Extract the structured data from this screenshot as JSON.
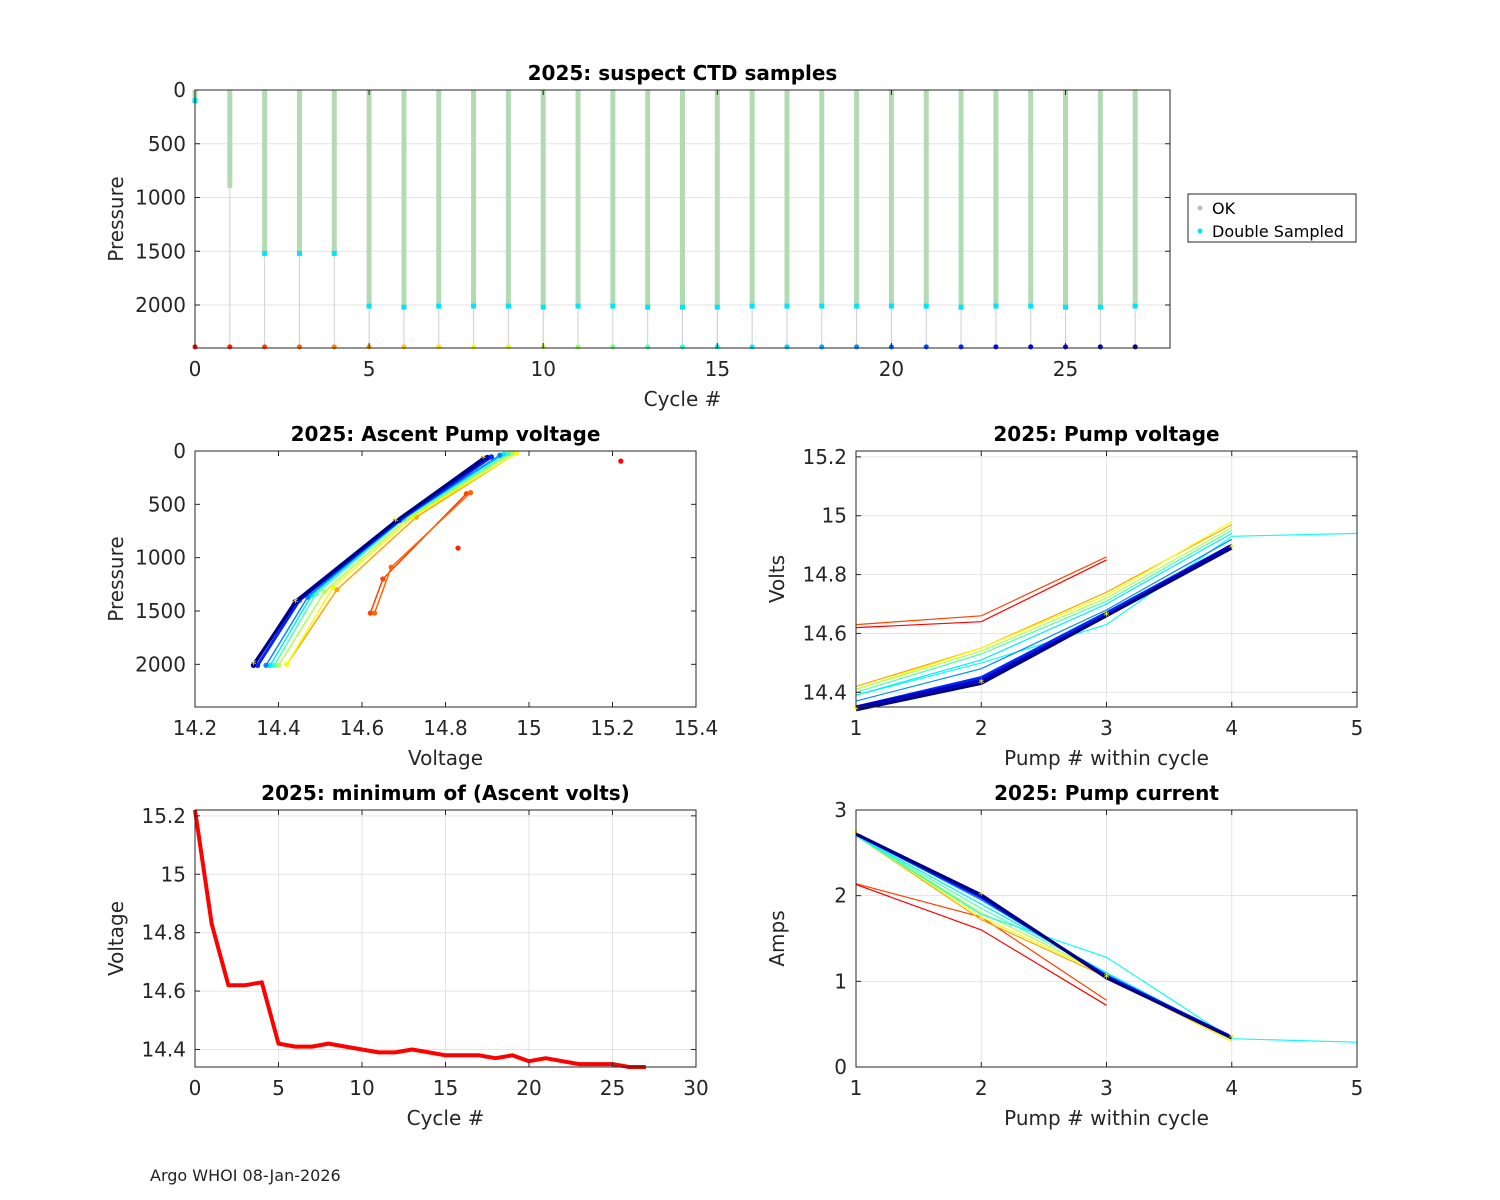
{
  "footer": "Argo WHOI 08-Jan-2026",
  "chart_data": [
    {
      "id": "suspect",
      "type": "scatter",
      "title": "2025: suspect CTD samples",
      "xlabel": "Cycle #",
      "ylabel": "Pressure",
      "xlim": [
        0,
        28
      ],
      "ylim": [
        0,
        2400
      ],
      "y_reversed": true,
      "xticks": [
        0,
        5,
        10,
        15,
        20,
        25
      ],
      "yticks": [
        0,
        500,
        1000,
        1500,
        2000
      ],
      "grid": true,
      "legend": [
        {
          "label": "OK",
          "color": "#c0c0c0"
        },
        {
          "label": "Double Sampled",
          "color": "#00e5ff"
        }
      ],
      "legend_position": "outside-right",
      "cycles": [
        0,
        1,
        2,
        3,
        4,
        5,
        6,
        7,
        8,
        9,
        10,
        11,
        12,
        13,
        14,
        15,
        16,
        17,
        18,
        19,
        20,
        21,
        22,
        23,
        24,
        25,
        26,
        27
      ],
      "profile_max_pressure": [
        100,
        910,
        1520,
        1520,
        1520,
        2010,
        2020,
        2010,
        2010,
        2010,
        2020,
        2010,
        2010,
        2020,
        2020,
        2020,
        2010,
        2010,
        2010,
        2010,
        2010,
        2010,
        2020,
        2010,
        2010,
        2020,
        2020,
        2010
      ],
      "double_sampled_pressure": [
        100,
        null,
        1520,
        1520,
        1520,
        2010,
        2020,
        2010,
        2010,
        2010,
        2020,
        2010,
        2010,
        2020,
        2020,
        2020,
        2010,
        2010,
        2010,
        2010,
        2010,
        2010,
        2020,
        2010,
        2010,
        2020,
        2020,
        2010
      ],
      "ok_color": "#b3dbb3",
      "bottom_marker_pressure": 2390
    },
    {
      "id": "ascent",
      "type": "line",
      "title": "2025: Ascent Pump voltage",
      "xlabel": "Voltage",
      "ylabel": "Pressure",
      "xlim": [
        14.2,
        15.4
      ],
      "ylim": [
        0,
        2400
      ],
      "y_reversed": true,
      "xticks": [
        14.2,
        14.4,
        14.6,
        14.8,
        15,
        15.2,
        15.4
      ],
      "xtick_labels": [
        "14.2",
        "14.4",
        "14.6",
        "14.8",
        "15",
        "15.2",
        "15.4"
      ],
      "yticks": [
        0,
        500,
        1000,
        1500,
        2000
      ],
      "grid": false,
      "series": [
        {
          "cycle": 0,
          "points": [
            [
              15.22,
              95
            ]
          ]
        },
        {
          "cycle": 1,
          "points": [
            [
              14.83,
              910
            ]
          ]
        },
        {
          "cycle": 2,
          "points": [
            [
              14.62,
              1520
            ],
            [
              14.65,
              1200
            ],
            [
              14.85,
              400
            ]
          ]
        },
        {
          "cycle": 3,
          "points": [
            [
              14.63,
              1520
            ],
            [
              14.67,
              1090
            ],
            [
              14.86,
              390
            ]
          ]
        },
        {
          "cycle": 5,
          "points": [
            [
              14.42,
              2000
            ],
            [
              14.54,
              1300
            ],
            [
              14.73,
              620
            ],
            [
              14.97,
              20
            ]
          ]
        },
        {
          "cycle": 8,
          "points": [
            [
              14.42,
              2000
            ],
            [
              14.53,
              1280
            ],
            [
              14.72,
              620
            ],
            [
              14.97,
              20
            ]
          ]
        },
        {
          "cycle": 10,
          "points": [
            [
              14.4,
              2010
            ],
            [
              14.51,
              1320
            ],
            [
              14.71,
              630
            ],
            [
              14.96,
              20
            ]
          ]
        },
        {
          "cycle": 13,
          "points": [
            [
              14.39,
              2010
            ],
            [
              14.49,
              1340
            ],
            [
              14.7,
              640
            ],
            [
              14.95,
              25
            ]
          ]
        },
        {
          "cycle": 16,
          "points": [
            [
              14.38,
              2010
            ],
            [
              14.48,
              1350
            ],
            [
              14.7,
              630
            ],
            [
              14.94,
              30
            ]
          ]
        },
        {
          "cycle": 19,
          "points": [
            [
              14.37,
              2010
            ],
            [
              14.47,
              1370
            ],
            [
              14.69,
              650
            ],
            [
              14.93,
              40
            ]
          ]
        },
        {
          "cycle": 22,
          "points": [
            [
              14.35,
              2010
            ],
            [
              14.45,
              1400
            ],
            [
              14.69,
              650
            ],
            [
              14.91,
              55
            ]
          ]
        },
        {
          "cycle": 25,
          "points": [
            [
              14.34,
              2010
            ],
            [
              14.44,
              1410
            ],
            [
              14.68,
              660
            ],
            [
              14.9,
              60
            ]
          ]
        },
        {
          "cycle": 27,
          "points": [
            [
              14.34,
              2000
            ],
            [
              14.44,
              1420
            ],
            [
              14.68,
              660
            ],
            [
              14.89,
              70
            ]
          ]
        }
      ]
    },
    {
      "id": "pumpv",
      "type": "line",
      "title": "2025: Pump voltage",
      "xlabel": "Pump # within cycle",
      "ylabel": "Volts",
      "xlim": [
        1,
        5
      ],
      "ylim": [
        14.35,
        15.22
      ],
      "xticks": [
        1,
        2,
        3,
        4,
        5
      ],
      "yticks": [
        14.4,
        14.6,
        14.8,
        15,
        15.2
      ],
      "ytick_labels": [
        "14.4",
        "14.6",
        "14.8",
        "15",
        "15.2"
      ],
      "grid": true,
      "series": [
        {
          "cycle": 0,
          "x": [
            1,
            2,
            3
          ],
          "y": [
            14.62,
            14.64,
            14.85
          ]
        },
        {
          "cycle": 2,
          "x": [
            1,
            2,
            3
          ],
          "y": [
            14.63,
            14.66,
            14.86
          ]
        },
        {
          "cycle": 5,
          "x": [
            1,
            2,
            3,
            4
          ],
          "y": [
            14.42,
            14.55,
            14.74,
            14.97
          ]
        },
        {
          "cycle": 8,
          "x": [
            1,
            2,
            3,
            4
          ],
          "y": [
            14.41,
            14.55,
            14.73,
            14.98
          ]
        },
        {
          "cycle": 10,
          "x": [
            1,
            2,
            3,
            4
          ],
          "y": [
            14.41,
            14.54,
            14.72,
            14.96
          ]
        },
        {
          "cycle": 13,
          "x": [
            1,
            2,
            3,
            4
          ],
          "y": [
            14.4,
            14.53,
            14.71,
            14.95
          ]
        },
        {
          "cycle": 15,
          "x": [
            1,
            2,
            3,
            4,
            5
          ],
          "y": [
            14.39,
            14.5,
            14.63,
            14.93,
            14.94
          ]
        },
        {
          "cycle": 16,
          "x": [
            1,
            2,
            3,
            4
          ],
          "y": [
            14.39,
            14.51,
            14.7,
            14.94
          ]
        },
        {
          "cycle": 19,
          "x": [
            1,
            2,
            3,
            4
          ],
          "y": [
            14.37,
            14.48,
            14.68,
            14.92
          ]
        },
        {
          "cycle": 22,
          "x": [
            1,
            2,
            3,
            4
          ],
          "y": [
            14.35,
            14.45,
            14.67,
            14.9
          ]
        },
        {
          "cycle": 25,
          "x": [
            1,
            2,
            3,
            4
          ],
          "y": [
            14.35,
            14.44,
            14.66,
            14.9
          ]
        },
        {
          "cycle": 27,
          "x": [
            1,
            2,
            3,
            4
          ],
          "y": [
            14.34,
            14.43,
            14.66,
            14.89
          ]
        }
      ]
    },
    {
      "id": "minv",
      "type": "line",
      "title": "2025: minimum of (Ascent volts)",
      "xlabel": "Cycle #",
      "ylabel": "Voltage",
      "xlim": [
        0,
        30
      ],
      "ylim": [
        14.34,
        15.22
      ],
      "xticks": [
        0,
        5,
        10,
        15,
        20,
        25,
        30
      ],
      "yticks": [
        14.4,
        14.6,
        14.8,
        15,
        15.2
      ],
      "ytick_labels": [
        "14.4",
        "14.6",
        "14.8",
        "15",
        "15.2"
      ],
      "grid": true,
      "color": "#ff0000",
      "x": [
        0,
        1,
        2,
        3,
        4,
        5,
        6,
        7,
        8,
        9,
        10,
        11,
        12,
        13,
        14,
        15,
        16,
        17,
        18,
        19,
        20,
        21,
        22,
        23,
        24,
        25,
        26,
        27
      ],
      "y": [
        15.22,
        14.83,
        14.62,
        14.62,
        14.63,
        14.42,
        14.41,
        14.41,
        14.42,
        14.41,
        14.4,
        14.39,
        14.39,
        14.4,
        14.39,
        14.38,
        14.38,
        14.38,
        14.37,
        14.38,
        14.36,
        14.37,
        14.36,
        14.35,
        14.35,
        14.35,
        14.34,
        14.34
      ]
    },
    {
      "id": "pumpc",
      "type": "line",
      "title": "2025: Pump current",
      "xlabel": "Pump # within cycle",
      "ylabel": "Amps",
      "xlim": [
        1,
        5
      ],
      "ylim": [
        0,
        3
      ],
      "xticks": [
        1,
        2,
        3,
        4,
        5
      ],
      "yticks": [
        0,
        1,
        2,
        3
      ],
      "grid": true,
      "series": [
        {
          "cycle": 0,
          "x": [
            1,
            2,
            3
          ],
          "y": [
            2.13,
            1.6,
            0.72
          ]
        },
        {
          "cycle": 2,
          "x": [
            1,
            2,
            3
          ],
          "y": [
            2.14,
            1.75,
            0.78
          ]
        },
        {
          "cycle": 5,
          "x": [
            1,
            2,
            3,
            4
          ],
          "y": [
            2.7,
            1.72,
            1.05,
            0.3
          ]
        },
        {
          "cycle": 8,
          "x": [
            1,
            2,
            3,
            4
          ],
          "y": [
            2.7,
            1.75,
            1.07,
            0.3
          ]
        },
        {
          "cycle": 10,
          "x": [
            1,
            2,
            3,
            4
          ],
          "y": [
            2.7,
            1.8,
            1.08,
            0.32
          ]
        },
        {
          "cycle": 13,
          "x": [
            1,
            2,
            3,
            4
          ],
          "y": [
            2.7,
            1.85,
            1.1,
            0.33
          ]
        },
        {
          "cycle": 15,
          "x": [
            1,
            2,
            3,
            4,
            5
          ],
          "y": [
            2.7,
            1.78,
            1.28,
            0.33,
            0.29
          ]
        },
        {
          "cycle": 16,
          "x": [
            1,
            2,
            3,
            4
          ],
          "y": [
            2.7,
            1.9,
            1.1,
            0.34
          ]
        },
        {
          "cycle": 19,
          "x": [
            1,
            2,
            3,
            4
          ],
          "y": [
            2.71,
            1.95,
            1.08,
            0.35
          ]
        },
        {
          "cycle": 22,
          "x": [
            1,
            2,
            3,
            4
          ],
          "y": [
            2.72,
            1.98,
            1.06,
            0.35
          ]
        },
        {
          "cycle": 25,
          "x": [
            1,
            2,
            3,
            4
          ],
          "y": [
            2.72,
            2.0,
            1.05,
            0.34
          ]
        },
        {
          "cycle": 27,
          "x": [
            1,
            2,
            3,
            4
          ],
          "y": [
            2.72,
            2.01,
            1.04,
            0.34
          ]
        }
      ]
    }
  ]
}
